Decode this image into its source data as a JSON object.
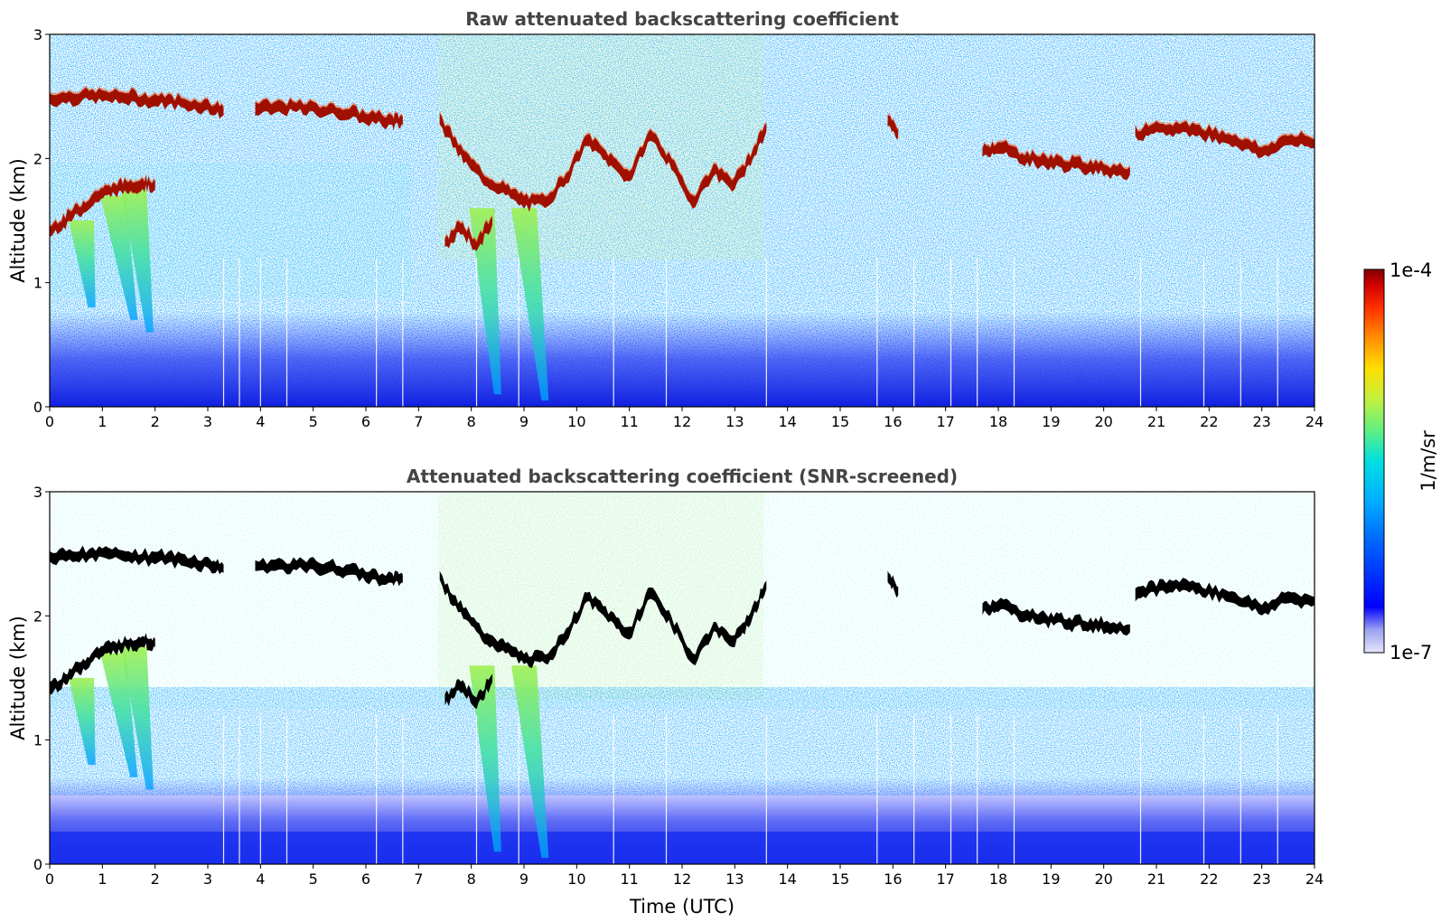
{
  "chart_data": [
    {
      "type": "heatmap",
      "title": "Raw attenuated backscattering coefficient",
      "xlabel": "",
      "ylabel": "Altitude (km)",
      "xlim": [
        0,
        24
      ],
      "ylim": [
        0,
        3
      ],
      "xticks": [
        "0",
        "1",
        "2",
        "3",
        "4",
        "5",
        "6",
        "7",
        "8",
        "9",
        "10",
        "11",
        "12",
        "13",
        "14",
        "15",
        "16",
        "17",
        "18",
        "19",
        "20",
        "21",
        "22",
        "23",
        "24"
      ],
      "yticks": [
        "0",
        "1",
        "2",
        "3"
      ],
      "cloud_layers": [
        {
          "x": [
            0.0,
            0.5,
            1.0,
            1.5,
            2.0,
            2.5,
            3.0,
            3.3
          ],
          "y": [
            2.48,
            2.5,
            2.5,
            2.49,
            2.47,
            2.45,
            2.42,
            2.38
          ]
        },
        {
          "x": [
            3.9,
            4.5,
            5.0,
            5.5,
            6.0,
            6.5,
            6.7
          ],
          "y": [
            2.4,
            2.41,
            2.4,
            2.38,
            2.33,
            2.3,
            2.3
          ]
        },
        {
          "x": [
            0.0,
            0.3,
            0.6,
            0.9,
            1.2,
            1.5,
            1.8,
            2.0
          ],
          "y": [
            1.42,
            1.5,
            1.6,
            1.7,
            1.75,
            1.78,
            1.8,
            1.78
          ]
        },
        {
          "x": [
            7.4,
            7.8,
            8.2,
            8.6,
            9.0,
            9.4,
            9.8,
            10.2,
            10.6,
            11.0,
            11.4,
            11.8,
            12.2,
            12.6,
            13.0,
            13.3,
            13.6
          ],
          "y": [
            2.3,
            2.05,
            1.85,
            1.75,
            1.65,
            1.65,
            1.85,
            2.15,
            2.0,
            1.85,
            2.2,
            1.95,
            1.65,
            1.9,
            1.8,
            2.0,
            2.25
          ]
        },
        {
          "x": [
            7.5,
            7.8,
            8.1,
            8.4
          ],
          "y": [
            1.3,
            1.45,
            1.3,
            1.5
          ]
        },
        {
          "x": [
            15.9,
            16.1
          ],
          "y": [
            2.3,
            2.2
          ]
        },
        {
          "x": [
            17.7,
            18.0,
            18.4,
            18.8,
            19.2,
            19.6,
            20.0,
            20.5
          ],
          "y": [
            2.05,
            2.1,
            2.02,
            1.98,
            1.96,
            1.94,
            1.92,
            1.9
          ]
        },
        {
          "x": [
            20.6,
            21.0,
            21.5,
            22.0,
            22.5,
            23.0,
            23.5,
            24.0
          ],
          "y": [
            2.2,
            2.22,
            2.25,
            2.2,
            2.15,
            2.05,
            2.15,
            2.12
          ]
        }
      ],
      "precipitation_streaks": [
        {
          "x_top": 0.6,
          "x_bottom": 0.8,
          "y_top": 1.5,
          "y_bottom": 0.8
        },
        {
          "x_top": 1.2,
          "x_bottom": 1.6,
          "y_top": 1.7,
          "y_bottom": 0.7
        },
        {
          "x_top": 1.6,
          "x_bottom": 1.9,
          "y_top": 1.75,
          "y_bottom": 0.6
        },
        {
          "x_top": 8.2,
          "x_bottom": 8.5,
          "y_top": 1.6,
          "y_bottom": 0.1
        },
        {
          "x_top": 9.0,
          "x_bottom": 9.4,
          "y_top": 1.6,
          "y_bottom": 0.05
        }
      ]
    },
    {
      "type": "heatmap",
      "title": "Attenuated backscattering coefficient (SNR-screened)",
      "xlabel": "Time (UTC)",
      "ylabel": "Altitude (km)",
      "xlim": [
        0,
        24
      ],
      "ylim": [
        0,
        3
      ],
      "xticks": [
        "0",
        "1",
        "2",
        "3",
        "4",
        "5",
        "6",
        "7",
        "8",
        "9",
        "10",
        "11",
        "12",
        "13",
        "14",
        "15",
        "16",
        "17",
        "18",
        "19",
        "20",
        "21",
        "22",
        "23",
        "24"
      ],
      "yticks": [
        "0",
        "1",
        "2",
        "3"
      ]
    }
  ],
  "colorbar": {
    "label": "1/m/sr",
    "max_label": "1e-4",
    "min_label": "1e-7",
    "scale": "log",
    "range": [
      1e-07,
      0.0001
    ],
    "colormap": [
      "#e6e6fa",
      "#9aa0f0",
      "#0000ff",
      "#0060ff",
      "#00b0ff",
      "#00e0e0",
      "#60f080",
      "#c0f040",
      "#ffe000",
      "#ff9000",
      "#ff3000",
      "#d00000",
      "#800000"
    ]
  }
}
